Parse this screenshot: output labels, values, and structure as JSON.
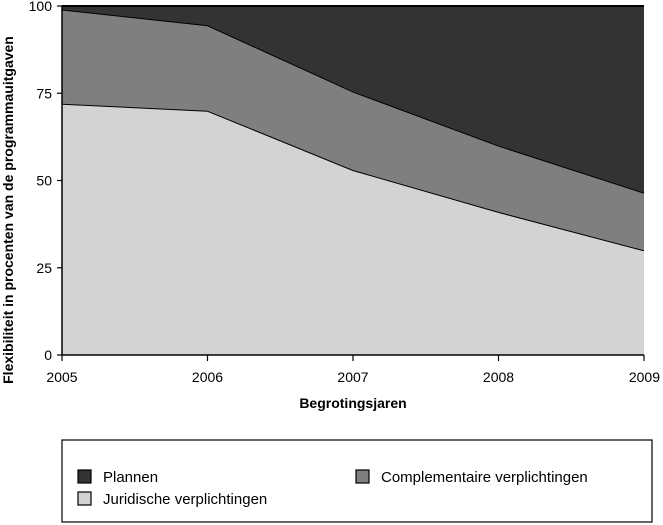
{
  "chart_data": {
    "type": "area",
    "stacked": true,
    "x": [
      2005,
      2006,
      2007,
      2008,
      2009
    ],
    "x_tick_labels": [
      "2005",
      "2006",
      "2007",
      "2008",
      "2009"
    ],
    "y_tick_labels": [
      "0",
      "25",
      "50",
      "75",
      "100"
    ],
    "y_ticks": [
      0,
      25,
      50,
      75,
      100
    ],
    "xlabel": "Begrotingsjaren",
    "ylabel": "Flexibiliteit in procenten van de programmauitgaven",
    "xlim": [
      2005,
      2009
    ],
    "ylim": [
      0,
      100
    ],
    "grid": false,
    "legend_position": "bottom",
    "series": [
      {
        "name": "Juridische verplichtingen",
        "values": [
          72,
          70,
          53,
          41,
          30
        ],
        "color": "#d3d3d3"
      },
      {
        "name": "Complementaire verplichtingen",
        "values": [
          27,
          24.5,
          22.5,
          19,
          16.5
        ],
        "color": "#7f7f7f"
      },
      {
        "name": "Plannen",
        "values": [
          1,
          5.5,
          24.5,
          40,
          53.5
        ],
        "color": "#333333"
      }
    ],
    "legend_order": [
      "Plannen",
      "Complementaire verplichtingen",
      "Juridische verplichtingen"
    ]
  }
}
